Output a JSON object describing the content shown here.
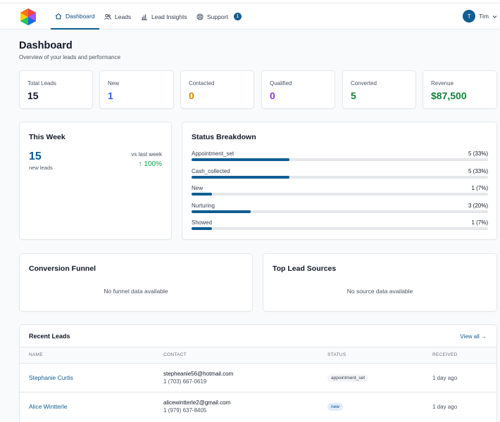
{
  "nav": {
    "items": [
      {
        "label": "Dashboard",
        "icon": "home-icon"
      },
      {
        "label": "Leads",
        "icon": "users-icon"
      },
      {
        "label": "Lead Insights",
        "icon": "bar-chart-icon"
      },
      {
        "label": "Support",
        "icon": "support-icon",
        "badge": "1"
      }
    ],
    "user_initial": "T",
    "user_name": "Tim"
  },
  "header": {
    "title": "Dashboard",
    "subtitle": "Overview of your leads and performance"
  },
  "stats": [
    {
      "label": "Total Leads",
      "value": "15",
      "color": "#111827"
    },
    {
      "label": "New",
      "value": "1",
      "color": "#2563eb"
    },
    {
      "label": "Contacted",
      "value": "0",
      "color": "#ca8a04"
    },
    {
      "label": "Qualified",
      "value": "0",
      "color": "#9333ea"
    },
    {
      "label": "Converted",
      "value": "5",
      "color": "#15803d"
    },
    {
      "label": "Revenue",
      "value": "$87,500",
      "color": "#15803d"
    }
  ],
  "this_week": {
    "title": "This Week",
    "count": "15",
    "count_label": "new leads",
    "compare_label": "vs last week",
    "change": "↑ 100%"
  },
  "status_breakdown": {
    "title": "Status Breakdown",
    "items": [
      {
        "label": "Appointment_set",
        "value": "5 (33%)",
        "fraction": 0.33
      },
      {
        "label": "Cash_collected",
        "value": "5 (33%)",
        "fraction": 0.33
      },
      {
        "label": "New",
        "value": "1 (7%)",
        "fraction": 0.07
      },
      {
        "label": "Nurturing",
        "value": "3 (20%)",
        "fraction": 0.2
      },
      {
        "label": "Showed",
        "value": "1 (7%)",
        "fraction": 0.07
      }
    ]
  },
  "funnel": {
    "title": "Conversion Funnel",
    "empty": "No funnel data available"
  },
  "sources": {
    "title": "Top Lead Sources",
    "empty": "No source data available"
  },
  "recent": {
    "title": "Recent Leads",
    "view_all": "View all →",
    "columns": [
      "NAME",
      "CONTACT",
      "STATUS",
      "RECEIVED"
    ],
    "rows": [
      {
        "name": "Stephanie Curtis",
        "email": "stepheanie56@hotmail.com",
        "phone": "1 (703) 667-0619",
        "status": "appointment_set",
        "received": "1 day ago"
      },
      {
        "name": "Alice Wintterle",
        "email": "alicewintterle2@gmail.com",
        "phone": "1 (979) 637-8405",
        "status": "new",
        "received": "1 day ago"
      }
    ]
  }
}
